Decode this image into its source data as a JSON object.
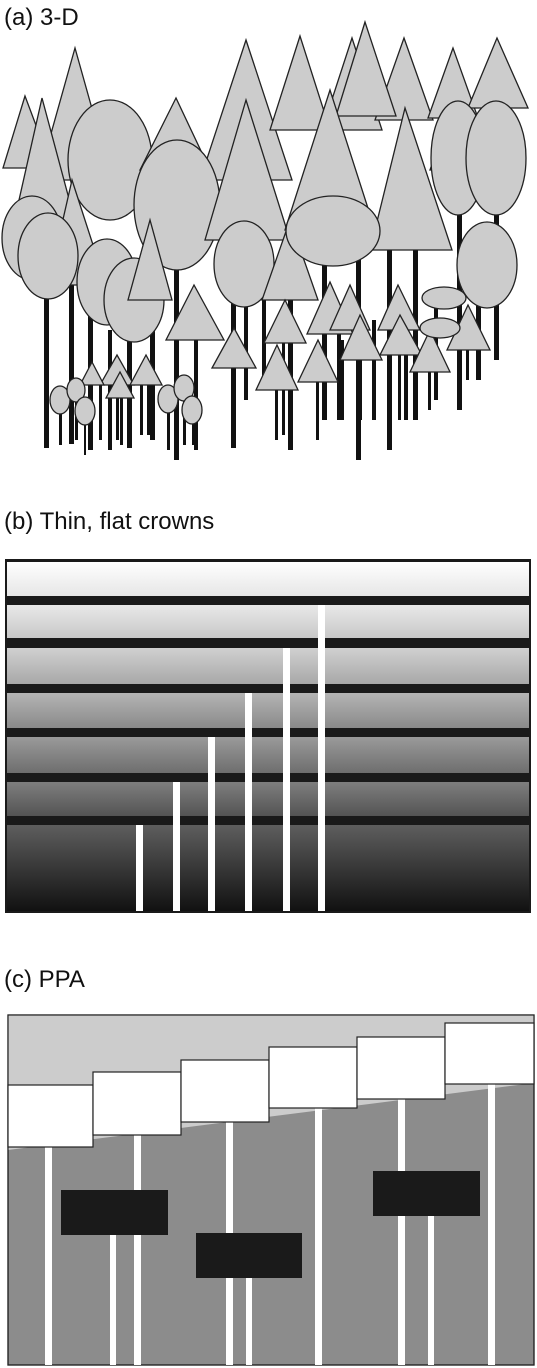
{
  "panels": {
    "a": {
      "label": "(a) 3-D"
    },
    "b": {
      "label": "(b) Thin, flat crowns"
    },
    "c": {
      "label": "(c) PPA"
    }
  },
  "colors": {
    "crown_fill": "#cccccc",
    "outline": "#222222",
    "trunk": "#111111",
    "ppa_background": "#8c8c8c",
    "ppa_sky": "#cccccc",
    "ppa_dark_crown": "#1a1a1a",
    "white": "#ffffff"
  }
}
